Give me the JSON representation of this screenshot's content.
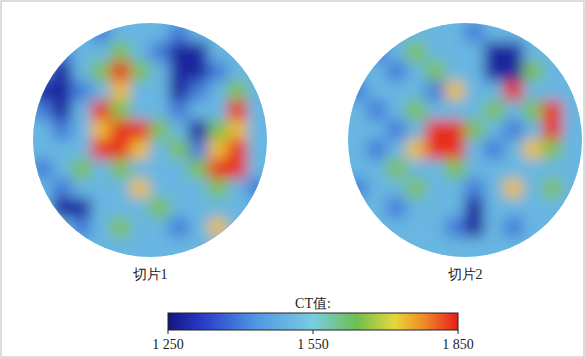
{
  "chart_data": [
    {
      "type": "heatmap",
      "title": "切片1",
      "cells": [
        [
          1500,
          1500,
          1500,
          1400,
          1500,
          1500,
          1500,
          1400,
          1500,
          1500,
          1500,
          1500
        ],
        [
          1500,
          1400,
          1500,
          1500,
          1650,
          1500,
          1400,
          1280,
          1280,
          1500,
          1500,
          1500
        ],
        [
          1400,
          1280,
          1500,
          1650,
          1840,
          1650,
          1500,
          1280,
          1280,
          1400,
          1500,
          1500
        ],
        [
          1280,
          1280,
          1400,
          1500,
          1740,
          1500,
          1500,
          1280,
          1400,
          1500,
          1650,
          1500
        ],
        [
          1400,
          1280,
          1500,
          1840,
          1650,
          1500,
          1500,
          1400,
          1500,
          1500,
          1840,
          1500
        ],
        [
          1500,
          1400,
          1500,
          1740,
          1840,
          1840,
          1650,
          1500,
          1280,
          1650,
          1740,
          1500
        ],
        [
          1500,
          1500,
          1500,
          1840,
          1840,
          1740,
          1500,
          1650,
          1400,
          1740,
          1840,
          1500
        ],
        [
          1400,
          1500,
          1650,
          1500,
          1650,
          1500,
          1500,
          1500,
          1650,
          1840,
          1840,
          1500
        ],
        [
          1500,
          1400,
          1500,
          1500,
          1500,
          1740,
          1500,
          1500,
          1500,
          1650,
          1500,
          1400
        ],
        [
          1500,
          1280,
          1280,
          1500,
          1500,
          1500,
          1650,
          1500,
          1500,
          1500,
          1500,
          1500
        ],
        [
          1500,
          1500,
          1400,
          1500,
          1650,
          1500,
          1500,
          1400,
          1500,
          1740,
          1500,
          1500
        ],
        [
          1500,
          1500,
          1500,
          1500,
          1500,
          1500,
          1500,
          1500,
          1500,
          1500,
          1500,
          1500
        ]
      ]
    },
    {
      "type": "heatmap",
      "title": "切片2",
      "cells": [
        [
          1500,
          1500,
          1500,
          1500,
          1500,
          1500,
          1400,
          1500,
          1500,
          1500,
          1500,
          1500
        ],
        [
          1500,
          1400,
          1500,
          1650,
          1500,
          1500,
          1500,
          1280,
          1280,
          1500,
          1500,
          1500
        ],
        [
          1500,
          1500,
          1400,
          1500,
          1650,
          1500,
          1500,
          1280,
          1280,
          1650,
          1500,
          1500
        ],
        [
          1400,
          1500,
          1500,
          1500,
          1400,
          1740,
          1500,
          1500,
          1840,
          1500,
          1500,
          1500
        ],
        [
          1500,
          1400,
          1500,
          1650,
          1500,
          1500,
          1500,
          1650,
          1500,
          1650,
          1840,
          1500
        ],
        [
          1500,
          1500,
          1400,
          1500,
          1840,
          1840,
          1650,
          1500,
          1400,
          1500,
          1840,
          1500
        ],
        [
          1500,
          1400,
          1500,
          1740,
          1840,
          1840,
          1500,
          1400,
          1500,
          1740,
          1650,
          1500
        ],
        [
          1500,
          1500,
          1650,
          1500,
          1500,
          1650,
          1500,
          1500,
          1500,
          1500,
          1500,
          1500
        ],
        [
          1400,
          1500,
          1500,
          1650,
          1500,
          1500,
          1400,
          1500,
          1740,
          1500,
          1650,
          1500
        ],
        [
          1500,
          1500,
          1400,
          1500,
          1500,
          1500,
          1280,
          1500,
          1500,
          1500,
          1500,
          1500
        ],
        [
          1500,
          1500,
          1500,
          1500,
          1500,
          1400,
          1280,
          1500,
          1400,
          1500,
          1500,
          1500
        ],
        [
          1500,
          1500,
          1500,
          1500,
          1500,
          1500,
          1500,
          1500,
          1500,
          1500,
          1500,
          1500
        ]
      ]
    }
  ],
  "colorbar": {
    "title": "CT值:",
    "range": [
      1250,
      1850
    ],
    "ticks": [
      {
        "value": 1250,
        "label": "1 250"
      },
      {
        "value": 1550,
        "label": "1 550"
      },
      {
        "value": 1850,
        "label": "1 850"
      }
    ]
  }
}
